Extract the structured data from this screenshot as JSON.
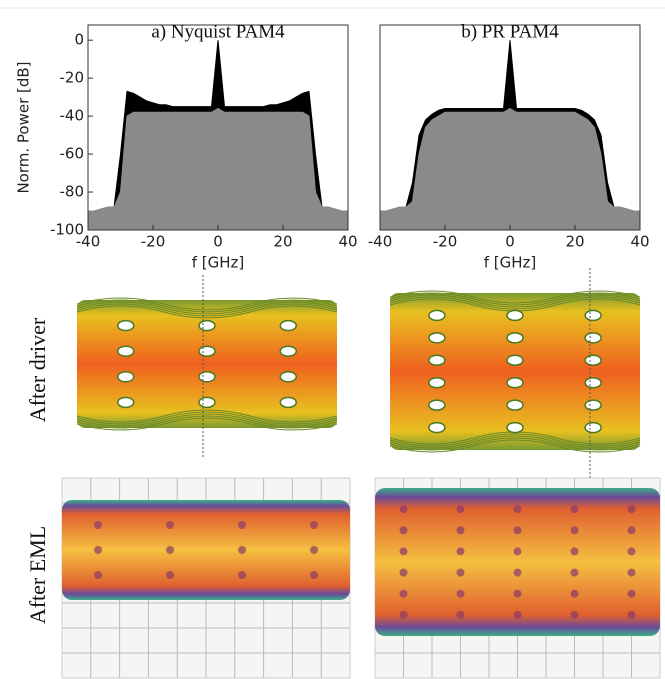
{
  "chart_data": [
    {
      "type": "area",
      "title": "a) Nyquist PAM4",
      "x_label": "f [GHz]",
      "y_label": "Norm. Power [dB]",
      "xlim": [
        -40,
        40
      ],
      "ylim": [
        -100,
        8
      ],
      "xticks": [
        -40,
        -20,
        0,
        20,
        40
      ],
      "yticks": [
        -100,
        -80,
        -60,
        -40,
        -20,
        0
      ],
      "x": [
        -40,
        -38,
        -36,
        -34,
        -32,
        -30,
        -28,
        -26,
        -24,
        -22,
        -20,
        -18,
        -16,
        -14,
        -12,
        -10,
        -8,
        -6,
        -4,
        -2,
        0,
        2,
        4,
        6,
        8,
        10,
        12,
        14,
        16,
        18,
        20,
        22,
        24,
        26,
        28,
        30,
        32,
        34,
        36,
        38,
        40
      ],
      "series": [
        {
          "color": "#000000",
          "values": [
            -90,
            -90,
            -89,
            -88,
            -88,
            -60,
            -27,
            -28,
            -30,
            -32,
            -33,
            -34,
            -34,
            -35,
            -35,
            -35,
            -35,
            -35,
            -35,
            -35,
            0,
            -35,
            -35,
            -35,
            -35,
            -35,
            -35,
            -35,
            -34,
            -34,
            -33,
            -32,
            -30,
            -28,
            -27,
            -60,
            -88,
            -88,
            -89,
            -90,
            -90
          ]
        },
        {
          "color": "#8a8a8a",
          "values": [
            -90,
            -90,
            -89,
            -88,
            -88,
            -80,
            -40,
            -38,
            -38,
            -38,
            -38,
            -38,
            -38,
            -38,
            -38,
            -38,
            -38,
            -38,
            -38,
            -38,
            -36,
            -38,
            -38,
            -38,
            -38,
            -38,
            -38,
            -38,
            -38,
            -38,
            -38,
            -38,
            -38,
            -38,
            -40,
            -80,
            -88,
            -88,
            -89,
            -90,
            -90
          ]
        }
      ]
    },
    {
      "type": "area",
      "title": "b) PR PAM4",
      "x_label": "f [GHz]",
      "xlim": [
        -40,
        40
      ],
      "ylim": [
        -100,
        8
      ],
      "xticks": [
        -40,
        -20,
        0,
        20,
        40
      ],
      "x": [
        -40,
        -38,
        -36,
        -34,
        -32,
        -30,
        -28,
        -26,
        -24,
        -22,
        -20,
        -18,
        -16,
        -14,
        -12,
        -10,
        -8,
        -6,
        -4,
        -2,
        0,
        2,
        4,
        6,
        8,
        10,
        12,
        14,
        16,
        18,
        20,
        22,
        24,
        26,
        28,
        30,
        32,
        34,
        36,
        38,
        40
      ],
      "series": [
        {
          "color": "#000000",
          "values": [
            -90,
            -90,
            -89,
            -88,
            -88,
            -75,
            -50,
            -42,
            -39,
            -37,
            -36,
            -36,
            -36,
            -36,
            -36,
            -36,
            -36,
            -36,
            -36,
            -36,
            0,
            -36,
            -36,
            -36,
            -36,
            -36,
            -36,
            -36,
            -36,
            -36,
            -36,
            -37,
            -39,
            -42,
            -50,
            -75,
            -88,
            -88,
            -89,
            -90,
            -90
          ]
        },
        {
          "color": "#8a8a8a",
          "values": [
            -90,
            -90,
            -89,
            -88,
            -88,
            -85,
            -60,
            -46,
            -42,
            -40,
            -38,
            -38,
            -38,
            -38,
            -38,
            -38,
            -38,
            -38,
            -38,
            -38,
            -36,
            -38,
            -38,
            -38,
            -38,
            -38,
            -38,
            -38,
            -38,
            -38,
            -38,
            -40,
            -42,
            -46,
            -60,
            -85,
            -88,
            -88,
            -89,
            -90,
            -90
          ]
        }
      ]
    }
  ],
  "eye_diagrams": {
    "row_labels": [
      "After driver",
      "After EML"
    ]
  }
}
